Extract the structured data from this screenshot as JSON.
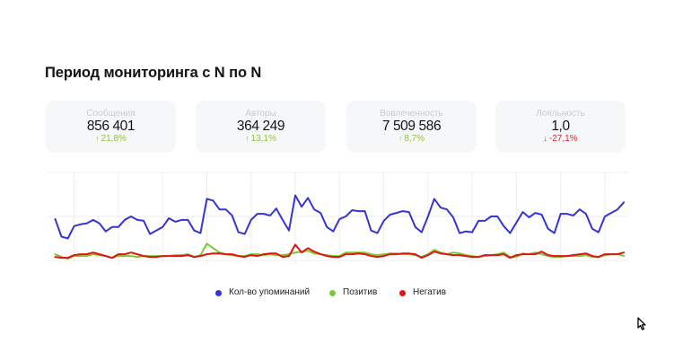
{
  "page": {
    "title": "Период мониторинга с N по N"
  },
  "colors": {
    "positive": "#8fc23c",
    "negative": "#e3262f",
    "card_bg": "#f6f7f9",
    "gridline": "#eeeeee"
  },
  "cards": [
    {
      "label": "Сообщения",
      "value": "856 401",
      "arrow": "↑",
      "change": "21,8%",
      "direction": "up",
      "color": "#8fc23c"
    },
    {
      "label": "Авторы",
      "value": "364 249",
      "arrow": "↑",
      "change": "13,1%",
      "direction": "up",
      "color": "#8fc23c"
    },
    {
      "label": "Вовлеченность",
      "value": "7 509 586",
      "arrow": "↑",
      "change": "8,7%",
      "direction": "up",
      "color": "#8fc23c"
    },
    {
      "label": "Лояльность",
      "value": "1,0",
      "arrow": "↓",
      "change": "-27,1%",
      "direction": "down",
      "color": "#e3262f"
    }
  ],
  "legend": [
    {
      "label": "Кол-во упоминаний",
      "color": "#3535d5"
    },
    {
      "label": "Позитив",
      "color": "#7acb2f"
    },
    {
      "label": "Негатив",
      "color": "#e01414"
    }
  ],
  "cursor": {
    "icon": "arrow-pointer-icon"
  },
  "chart_data": {
    "type": "line",
    "title": "",
    "xlabel": "",
    "ylabel": "",
    "x_ticks": [],
    "y_ticks": [],
    "ylim": [
      0,
      100
    ],
    "grid": true,
    "y_gridlines": [
      0,
      50,
      100
    ],
    "x_gridline_every": 7,
    "x_gridline_offset": 3,
    "legend_position": "bottom",
    "note": "No axis labels are shown; values are on a normalized 0-100 scale read from gridlines (bottom=0, top=100).",
    "series": [
      {
        "name": "Кол-во упоминаний",
        "color": "#3535d5",
        "values": [
          47,
          27,
          25,
          39,
          41,
          42,
          46,
          42,
          33,
          38,
          38,
          46,
          50,
          46,
          45,
          30,
          34,
          38,
          48,
          44,
          46,
          46,
          34,
          31,
          70,
          68,
          58,
          58,
          51,
          32,
          30,
          46,
          53,
          53,
          51,
          59,
          46,
          34,
          74,
          61,
          71,
          58,
          54,
          38,
          33,
          47,
          50,
          57,
          56,
          56,
          34,
          31,
          45,
          52,
          54,
          56,
          55,
          38,
          32,
          50,
          70,
          60,
          58,
          49,
          31,
          33,
          32,
          45,
          45,
          50,
          50,
          39,
          31,
          43,
          55,
          49,
          54,
          52,
          36,
          31,
          53,
          53,
          51,
          58,
          53,
          36,
          32,
          50,
          54,
          58,
          66
        ]
      },
      {
        "name": "Позитив",
        "color": "#7acb2f",
        "values": [
          7,
          4,
          2,
          5,
          5,
          5,
          7,
          6,
          5,
          3,
          5,
          5,
          5,
          4,
          5,
          5,
          5,
          5,
          5,
          6,
          6,
          7,
          4,
          6,
          19,
          14,
          9,
          7,
          6,
          5,
          5,
          7,
          7,
          6,
          7,
          6,
          6,
          7,
          9,
          10,
          11,
          8,
          7,
          6,
          5,
          5,
          9,
          9,
          9,
          9,
          7,
          6,
          7,
          8,
          8,
          7,
          7,
          6,
          4,
          7,
          12,
          9,
          7,
          9,
          8,
          6,
          5,
          4,
          5,
          6,
          7,
          9,
          4,
          4,
          8,
          7,
          9,
          7,
          5,
          4,
          4,
          5,
          5,
          5,
          6,
          4,
          4,
          6,
          7,
          7,
          5
        ]
      },
      {
        "name": "Негатив",
        "color": "#e01414",
        "values": [
          4,
          3,
          3,
          6,
          7,
          7,
          9,
          7,
          5,
          3,
          7,
          7,
          9,
          7,
          5,
          4,
          4,
          5,
          5,
          5,
          5,
          6,
          4,
          5,
          7,
          8,
          8,
          7,
          7,
          5,
          4,
          6,
          5,
          7,
          8,
          8,
          4,
          5,
          18,
          9,
          14,
          10,
          7,
          5,
          4,
          4,
          7,
          7,
          8,
          7,
          5,
          4,
          5,
          7,
          7,
          8,
          8,
          7,
          3,
          6,
          10,
          8,
          7,
          6,
          6,
          5,
          4,
          4,
          6,
          6,
          6,
          7,
          3,
          6,
          7,
          7,
          7,
          10,
          6,
          5,
          5,
          5,
          6,
          7,
          8,
          5,
          4,
          7,
          7,
          7,
          9
        ]
      }
    ]
  }
}
